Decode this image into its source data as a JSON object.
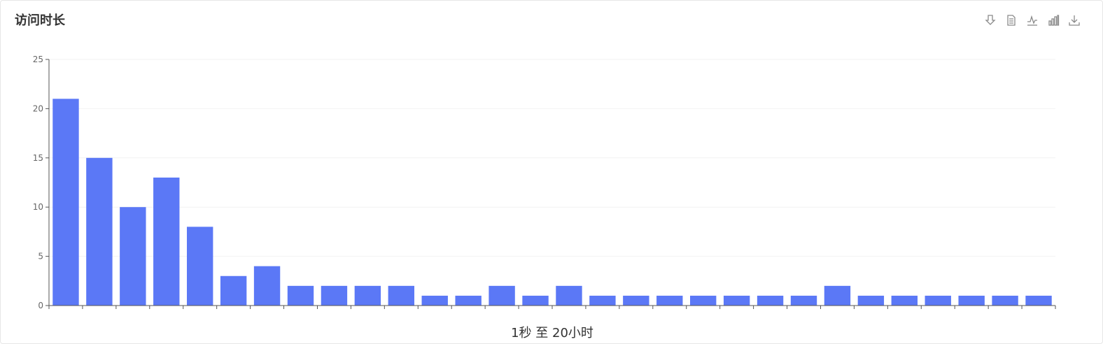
{
  "panel": {
    "title": "访问时长"
  },
  "toolbox": [
    {
      "name": "pin-icon"
    },
    {
      "name": "data-view-icon"
    },
    {
      "name": "line-chart-icon"
    },
    {
      "name": "bar-chart-icon"
    },
    {
      "name": "download-icon"
    }
  ],
  "colors": {
    "bar": "#5b78f6",
    "axis": "#555555",
    "grid": "#f2f2f2"
  },
  "chart_data": {
    "type": "bar",
    "title": "",
    "xlabel": "1秒 至 20小时",
    "ylabel": "",
    "ylim": [
      0,
      25
    ],
    "yticks": [
      0,
      5,
      10,
      15,
      20,
      25
    ],
    "values": [
      21,
      15,
      10,
      13,
      8,
      3,
      4,
      2,
      2,
      2,
      2,
      1,
      1,
      2,
      1,
      2,
      1,
      1,
      1,
      1,
      1,
      1,
      1,
      2,
      1,
      1,
      1,
      1,
      1,
      1
    ],
    "grid": false,
    "legend": "none"
  }
}
